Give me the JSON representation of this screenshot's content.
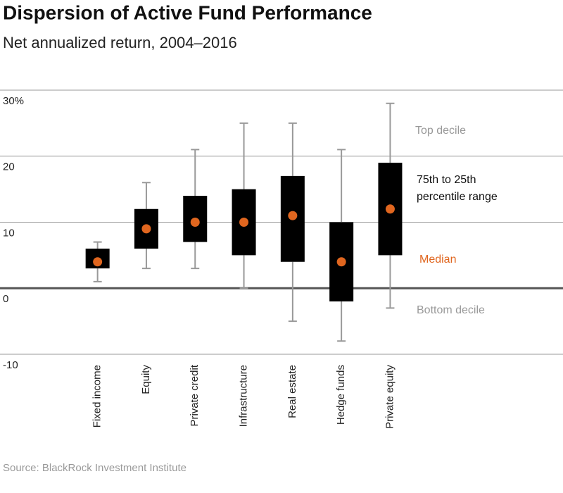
{
  "chart_data": {
    "type": "box",
    "title": "Dispersion of Active Fund Performance",
    "subtitle": "Net annualized return, 2004–2016",
    "source": "Source: BlackRock Investment Institute",
    "categories": [
      "Fixed income",
      "Equity",
      "Private credit",
      "Infrastructure",
      "Real estate",
      "Hedge funds",
      "Private equity"
    ],
    "top_decile": [
      7,
      16,
      21,
      25,
      25,
      21,
      28
    ],
    "q3": [
      6,
      12,
      14,
      15,
      17,
      10,
      19
    ],
    "median": [
      4,
      9,
      10,
      10,
      11,
      4,
      12
    ],
    "q1": [
      3,
      6,
      7,
      5,
      4,
      -2,
      5
    ],
    "bottom_decile": [
      1,
      3,
      3,
      0,
      -5,
      -8,
      -3
    ],
    "ylim": [
      -10,
      30
    ],
    "yticks": [
      -10,
      0,
      10,
      20,
      {
        "value": 30,
        "label": "30%"
      }
    ],
    "grid": true,
    "box_color": "#000000",
    "whisker_color": "#999999",
    "median_color": "#e0661f",
    "annotations": [
      {
        "lines": [
          "Top decile"
        ],
        "color": "#999999"
      },
      {
        "lines": [
          "75th to 25th",
          "percentile range"
        ],
        "color": "#111111"
      },
      {
        "lines": [
          "Median"
        ],
        "color": "#e0661f"
      },
      {
        "lines": [
          "Bottom decile"
        ],
        "color": "#999999"
      }
    ]
  }
}
